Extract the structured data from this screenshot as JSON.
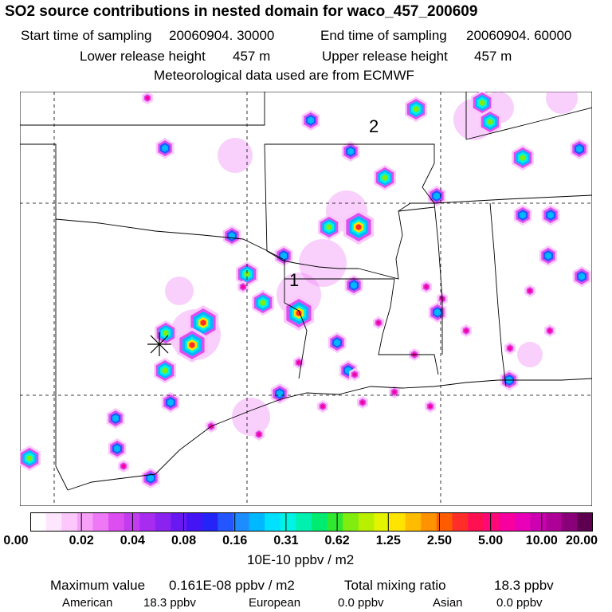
{
  "title": "SO2 source contributions in nested domain for waco_457_200609",
  "sampling": {
    "start_label": "Start time of sampling",
    "start_value": "20060904. 30000",
    "end_label": "End time of sampling",
    "end_value": "20060904. 60000"
  },
  "release": {
    "lower_label": "Lower release height",
    "lower_value": "457 m",
    "upper_label": "Upper release height",
    "upper_value": "457 m"
  },
  "met_line": "Meteorological data used are from ECMWF",
  "map_labels": {
    "label_1": "1",
    "label_2": "2"
  },
  "legend": {
    "ticks": [
      "0.00",
      "0.02",
      "0.04",
      "0.08",
      "0.16",
      "0.31",
      "0.62",
      "1.25",
      "2.50",
      "5.00",
      "10.00",
      "20.00"
    ],
    "unit": "10E-10 ppbv / m2",
    "colors": [
      "#ffffff",
      "#ffe6ff",
      "#fcc8fc",
      "#f6a0f8",
      "#ee78f6",
      "#dc4ef0",
      "#c43cf0",
      "#a82cf0",
      "#8a22f0",
      "#6818f0",
      "#4414f4",
      "#2424f8",
      "#2456ff",
      "#1d8cff",
      "#00b8ff",
      "#00e0ff",
      "#00f4e4",
      "#00f0b0",
      "#00ec70",
      "#30e830",
      "#80ec10",
      "#b8f000",
      "#e4f400",
      "#ffe400",
      "#ffbc00",
      "#ff9200",
      "#ff5c00",
      "#ff2e28",
      "#ff1050",
      "#ff0878",
      "#f800a0",
      "#e800b8",
      "#cc00b0",
      "#ae0096",
      "#8a0078",
      "#5e0050"
    ]
  },
  "stats": {
    "max_label": "Maximum value",
    "max_value": "0.161E-08 ppbv / m2",
    "total_label": "Total mixing ratio",
    "total_value": "18.3 ppbv",
    "american_label": "American",
    "american_value": "18.3 ppbv",
    "european_label": "European",
    "european_value": "0.0 ppbv",
    "asian_label": "Asian",
    "asian_value": "0.0 ppbv"
  }
}
